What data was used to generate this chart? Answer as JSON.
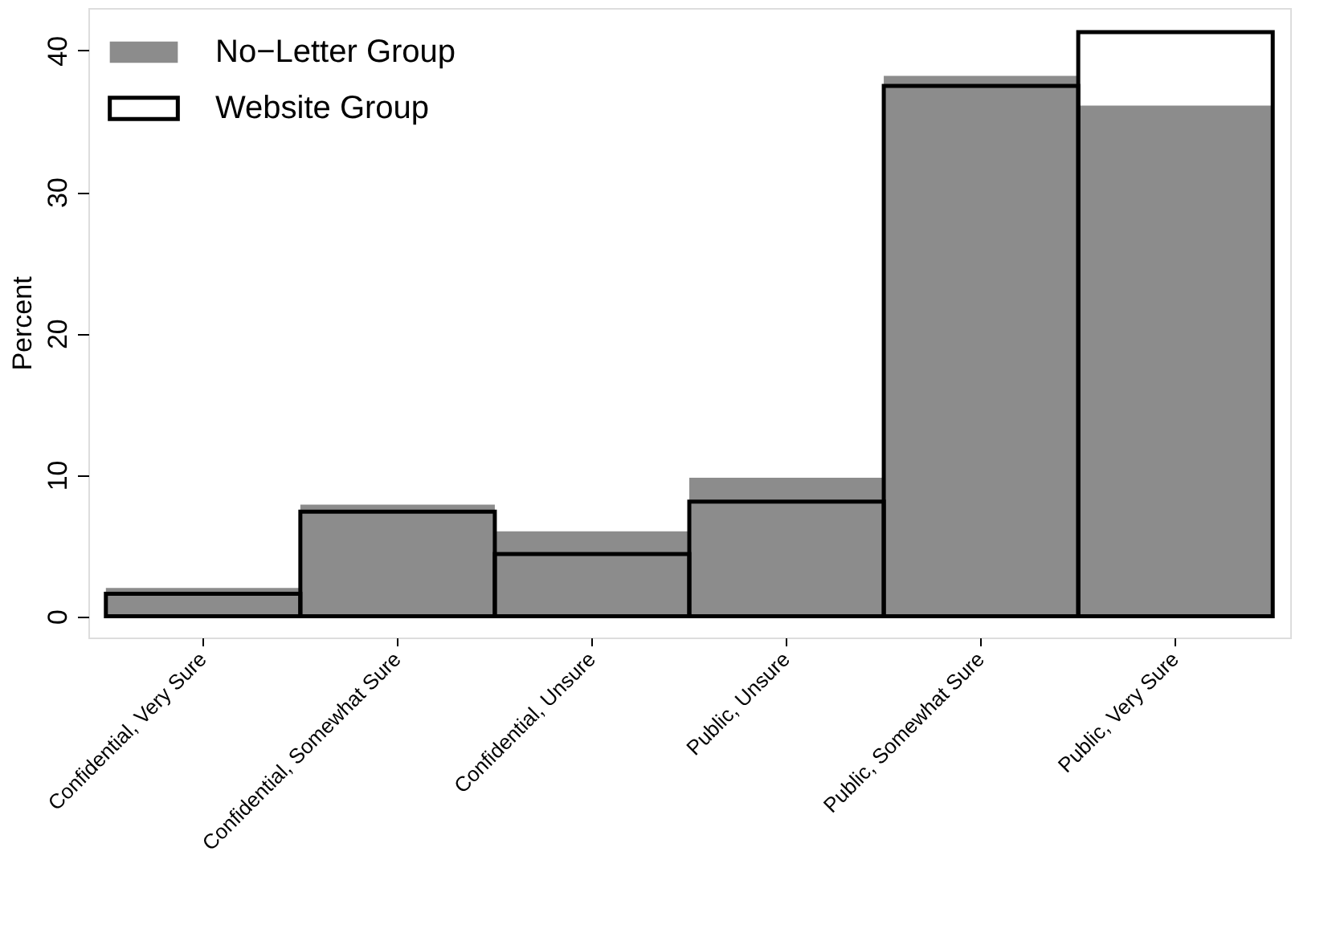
{
  "chart_data": {
    "type": "bar",
    "ylabel": "Percent",
    "categories": [
      "Confidential, Very Sure",
      "Confidential, Somewhat Sure",
      "Confidential, Unsure",
      "Public, Unsure",
      "Public, Somewhat Sure",
      "Public, Very Sure"
    ],
    "series": [
      {
        "name": "No−Letter Group",
        "color": "#8c8c8c",
        "values": [
          2.0,
          7.9,
          6.0,
          9.8,
          38.2,
          36.1
        ]
      },
      {
        "name": "Website Group",
        "color": "#000000",
        "values": [
          1.6,
          7.4,
          4.4,
          8.1,
          37.5,
          41.3
        ]
      }
    ],
    "ylim": [
      -1.5,
      43
    ],
    "yticks": [
      0,
      10,
      20,
      30,
      40
    ],
    "grid": false,
    "legend": "top left"
  }
}
